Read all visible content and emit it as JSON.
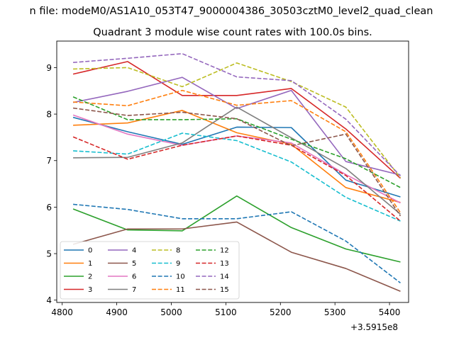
{
  "chart_data": {
    "type": "line",
    "suptitle": "n file: modeM0/AS1A10_053T47_9000004386_30503cztM0_level2_quad_clean",
    "title": "Quadrant 3 module wise count rates with 100.0s bins.",
    "xlabel": "",
    "ylabel": "",
    "x_offset_label": "+3.5915e8",
    "xlim": [
      4790,
      5435
    ],
    "ylim": [
      3.95,
      9.57
    ],
    "xticks": [
      4800,
      4900,
      5000,
      5100,
      5200,
      5300,
      5400
    ],
    "yticks": [
      4,
      5,
      6,
      7,
      8,
      9
    ],
    "x": [
      4820,
      4920,
      5020,
      5120,
      5220,
      5320,
      5420
    ],
    "legend_position": "lower-left",
    "legend_ncol": 4,
    "series": [
      {
        "name": "0",
        "color": "#1f77b4",
        "dash": "solid",
        "values": [
          7.93,
          7.62,
          7.35,
          7.72,
          7.71,
          6.58,
          6.22
        ]
      },
      {
        "name": "1",
        "color": "#ff7f0e",
        "dash": "solid",
        "values": [
          7.76,
          7.81,
          8.08,
          7.6,
          7.35,
          6.42,
          6.1
        ]
      },
      {
        "name": "2",
        "color": "#2ca02c",
        "dash": "solid",
        "values": [
          5.96,
          5.51,
          5.49,
          6.24,
          5.56,
          5.1,
          4.82
        ]
      },
      {
        "name": "3",
        "color": "#d62728",
        "dash": "solid",
        "values": [
          8.86,
          9.13,
          8.4,
          8.4,
          8.55,
          7.68,
          6.62
        ]
      },
      {
        "name": "4",
        "color": "#9467bd",
        "dash": "solid",
        "values": [
          8.25,
          8.49,
          8.79,
          8.12,
          8.51,
          6.98,
          6.69
        ]
      },
      {
        "name": "5",
        "color": "#8c564b",
        "dash": "solid",
        "values": [
          5.2,
          5.53,
          5.53,
          5.68,
          5.03,
          4.68,
          4.19
        ]
      },
      {
        "name": "6",
        "color": "#e377c2",
        "dash": "solid",
        "values": [
          7.98,
          7.57,
          7.33,
          7.53,
          7.38,
          6.7,
          6.09
        ]
      },
      {
        "name": "7",
        "color": "#7f7f7f",
        "dash": "solid",
        "values": [
          7.06,
          7.07,
          7.38,
          8.15,
          7.49,
          6.83,
          5.85
        ]
      },
      {
        "name": "8",
        "color": "#bcbd22",
        "dash": "dashed",
        "values": [
          8.97,
          9.0,
          8.59,
          9.1,
          8.7,
          8.15,
          6.63
        ]
      },
      {
        "name": "9",
        "color": "#17becf",
        "dash": "dashed",
        "values": [
          7.21,
          7.14,
          7.59,
          7.43,
          6.97,
          6.21,
          5.7
        ]
      },
      {
        "name": "10",
        "color": "#1f77b4",
        "dash": "dashed",
        "values": [
          6.06,
          5.95,
          5.75,
          5.75,
          5.9,
          5.27,
          4.37
        ]
      },
      {
        "name": "11",
        "color": "#ff7f0e",
        "dash": "dashed",
        "values": [
          8.26,
          8.18,
          8.51,
          8.19,
          8.29,
          7.62,
          5.88
        ]
      },
      {
        "name": "12",
        "color": "#2ca02c",
        "dash": "dashed",
        "values": [
          8.37,
          7.88,
          7.88,
          7.9,
          7.46,
          7.04,
          6.42
        ]
      },
      {
        "name": "13",
        "color": "#d62728",
        "dash": "dashed",
        "values": [
          7.51,
          7.03,
          7.33,
          7.53,
          7.33,
          6.68,
          5.7
        ]
      },
      {
        "name": "14",
        "color": "#9467bd",
        "dash": "dashed",
        "values": [
          9.11,
          9.2,
          9.3,
          8.8,
          8.72,
          7.89,
          6.67
        ]
      },
      {
        "name": "15",
        "color": "#8c564b",
        "dash": "dashed",
        "values": [
          8.13,
          7.97,
          8.04,
          7.9,
          7.32,
          7.57,
          5.81
        ]
      }
    ]
  }
}
